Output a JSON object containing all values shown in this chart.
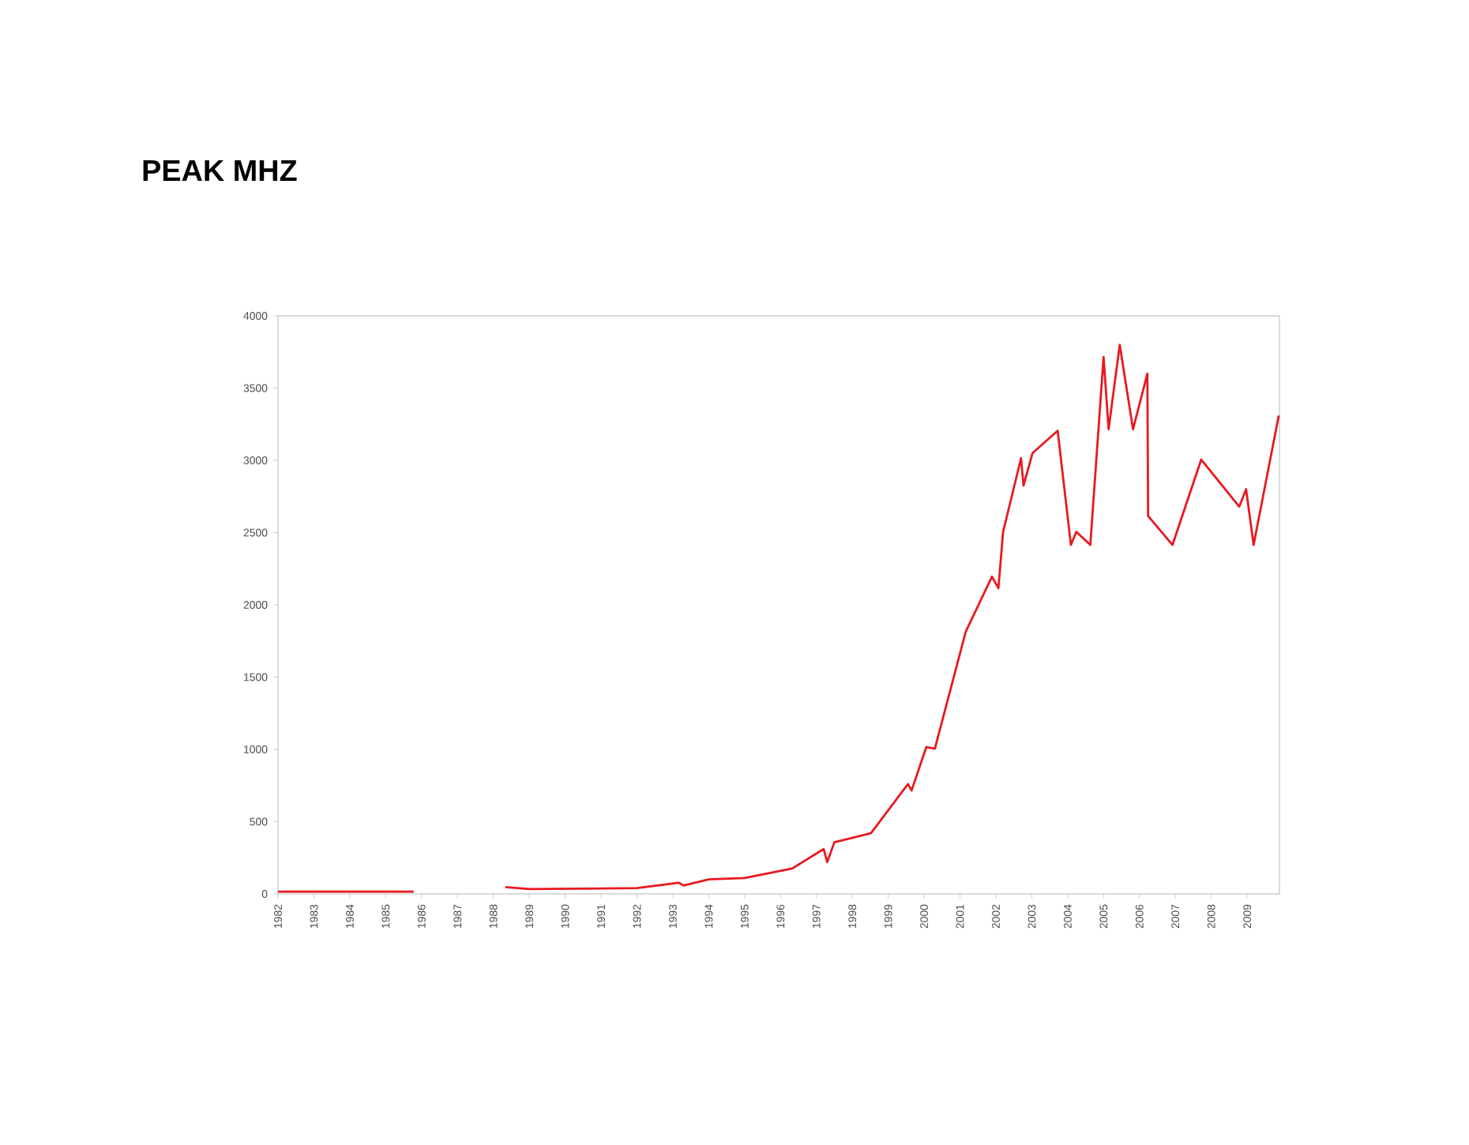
{
  "chart_data": {
    "type": "line",
    "title": "PEAK MHZ",
    "x": [
      1982,
      1985.78,
      1987,
      1988.33,
      1989,
      1992,
      1993.17,
      1993.3,
      1994,
      1995,
      1996.32,
      1997.2,
      1997.3,
      1997.5,
      1998.52,
      1999.55,
      1999.65,
      2000.06,
      2000.3,
      2001.16,
      2001.89,
      2002.07,
      2002.2,
      2002.7,
      2002.77,
      2003.02,
      2003.72,
      2004.09,
      2004.24,
      2004.63,
      2005.0,
      2005.14,
      2005.45,
      2005.82,
      2006.22,
      2006.24,
      2006.92,
      2007.72,
      2008.78,
      2008.97,
      2009.18,
      2009.88
    ],
    "series": [
      {
        "color": "#e8191f",
        "values": [
          15,
          15,
          null,
          47,
          33,
          40,
          77,
          58,
          100,
          110,
          175,
          310,
          220,
          357,
          420,
          760,
          715,
          1015,
          1005,
          1815,
          2195,
          2115,
          2505,
          3015,
          2825,
          3050,
          3205,
          2415,
          2505,
          2415,
          3715,
          3215,
          3800,
          3215,
          3600,
          2615,
          2415,
          3005,
          2680,
          2800,
          2415,
          3310
        ]
      }
    ],
    "xlim": [
      1982,
      2009.9
    ],
    "ylim": [
      0,
      4000
    ],
    "xticks": [
      1982,
      1983,
      1984,
      1985,
      1986,
      1987,
      1988,
      1989,
      1990,
      1991,
      1992,
      1993,
      1994,
      1995,
      1996,
      1997,
      1998,
      1999,
      2000,
      2001,
      2002,
      2003,
      2004,
      2005,
      2006,
      2007,
      2008,
      2009
    ],
    "yticks": [
      0,
      500,
      1000,
      1500,
      2000,
      2500,
      3000,
      3500,
      4000
    ]
  }
}
